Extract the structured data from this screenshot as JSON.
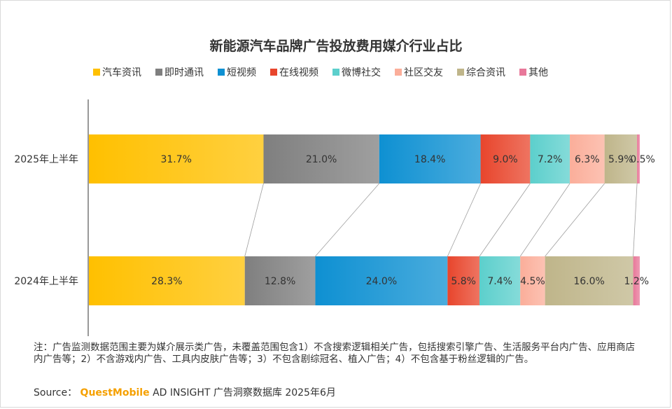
{
  "chart_data": {
    "type": "bar",
    "orientation": "horizontal",
    "stacked": "percent",
    "title": "新能源汽车品牌广告投放费用媒介行业占比",
    "categories": [
      "2025年上半年",
      "2024年上半年"
    ],
    "series": [
      {
        "name": "汽车资讯",
        "color": "#FFC000",
        "values": [
          31.7,
          28.3
        ],
        "labels": [
          "31.7%",
          "28.3%"
        ]
      },
      {
        "name": "即时通讯",
        "color": "#7F7F7F",
        "values": [
          21.0,
          12.8
        ],
        "labels": [
          "21.0%",
          "12.8%"
        ]
      },
      {
        "name": "短视频",
        "color": "#0E90D2",
        "values": [
          18.4,
          24.0
        ],
        "labels": [
          "18.4%",
          "24.0%"
        ]
      },
      {
        "name": "在线视频",
        "color": "#E8452C",
        "values": [
          9.0,
          5.8
        ],
        "labels": [
          "9.0%",
          "5.8%"
        ]
      },
      {
        "name": "微博社交",
        "color": "#5CCFCC",
        "values": [
          7.2,
          7.4
        ],
        "labels": [
          "7.2%",
          "7.4%"
        ]
      },
      {
        "name": "社区交友",
        "color": "#FBAE9A",
        "values": [
          6.3,
          4.5
        ],
        "labels": [
          "6.3%",
          "4.5%"
        ]
      },
      {
        "name": "综合资讯",
        "color": "#BFB58A",
        "values": [
          5.9,
          16.0
        ],
        "labels": [
          "5.9%",
          "16.0%"
        ]
      },
      {
        "name": "其他",
        "color": "#E8789A",
        "values": [
          0.5,
          1.2
        ],
        "labels": [
          "0.5%",
          "1.2%"
        ]
      }
    ],
    "xlim": [
      0,
      100
    ],
    "legend": "top"
  },
  "footnote": "注：广告监测数据范围主要为媒介展示类广告，未覆盖范围包含1）不含搜索逻辑相关广告，包括搜索引擎广告、生活服务平台内广告、应用商店内广告等；2）不含游戏内广告、工具内皮肤广告等；3）不包含剧综冠名、植入广告；4）不包含基于粉丝逻辑的广告。",
  "source": {
    "label": "Source：",
    "brand": "QuestMobile",
    "text": "AD INSIGHT 广告洞察数据库 2025年6月"
  }
}
